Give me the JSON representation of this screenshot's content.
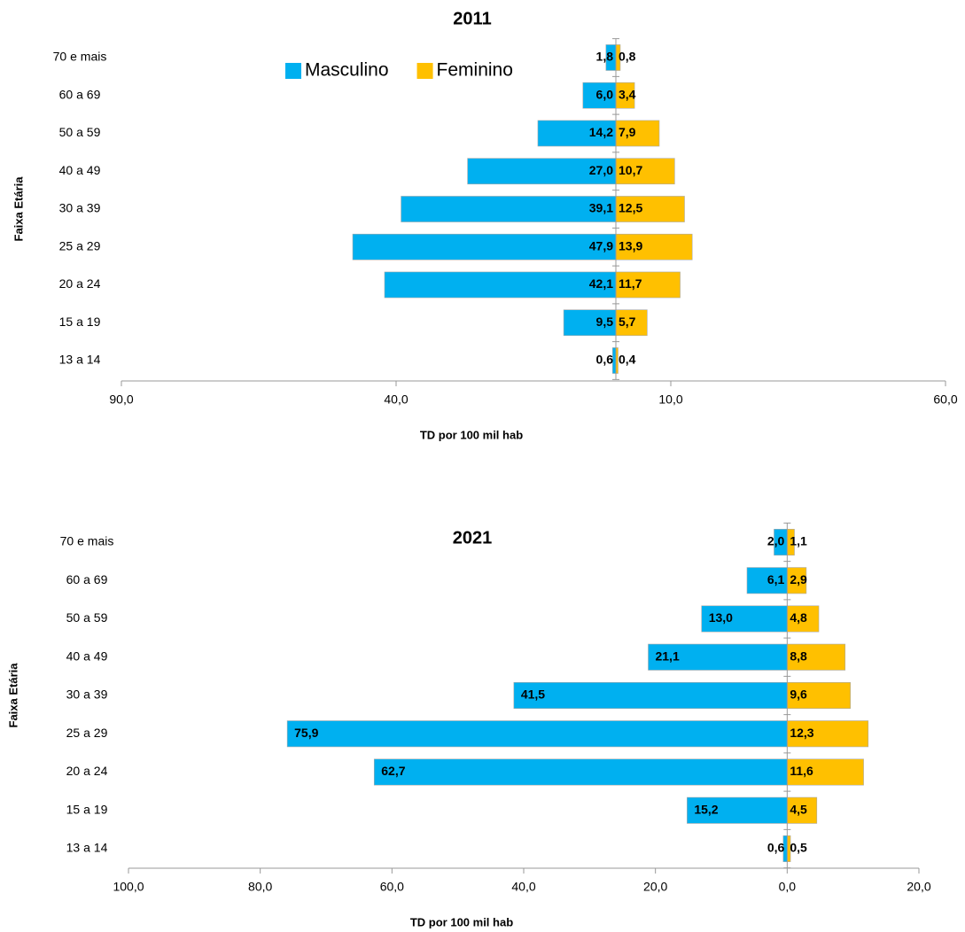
{
  "chart_data": [
    {
      "type": "pyramid",
      "title": "2011",
      "x_label": "TD por 100 mil hab",
      "y_label": "Faixa Etária",
      "categories": [
        "70 e mais",
        "60 a 69",
        "50 a 59",
        "40 a 49",
        "30 a 39",
        "25 a 29",
        "20 a 24",
        "15 a 19",
        "13 a 14"
      ],
      "series": [
        {
          "name": "Masculino",
          "color": "#00b0f0",
          "side": "left",
          "values": [
            1.8,
            6.0,
            14.2,
            27.0,
            39.1,
            47.9,
            42.1,
            9.5,
            0.6
          ],
          "value_labels": [
            "1,8",
            "6,0",
            "14,2",
            "27,0",
            "39,1",
            "47,9",
            "42,1",
            "9,5",
            "0,6"
          ]
        },
        {
          "name": "Feminino",
          "color": "#ffc000",
          "side": "right",
          "values": [
            0.8,
            3.4,
            7.9,
            10.7,
            12.5,
            13.9,
            11.7,
            5.7,
            0.4
          ],
          "value_labels": [
            "0,8",
            "3,4",
            "7,9",
            "10,7",
            "12,5",
            "13,9",
            "11,7",
            "5,7",
            "0,4"
          ]
        }
      ],
      "xlim": [
        -90,
        60
      ],
      "xticks": [
        {
          "value": -90,
          "label": "90,0"
        },
        {
          "value": -40,
          "label": "40,0"
        },
        {
          "value": 10,
          "label": "10,0"
        },
        {
          "value": 60,
          "label": "60,0"
        }
      ],
      "legend": true
    },
    {
      "type": "pyramid",
      "title": "2021",
      "x_label": "TD por 100 mil hab",
      "y_label": "Faixa Etária",
      "categories": [
        "70 e mais",
        "60 a 69",
        "50 a 59",
        "40 a 49",
        "30 a 39",
        "25 a 29",
        "20 a 24",
        "15 a 19",
        "13 a 14"
      ],
      "series": [
        {
          "name": "Masculino",
          "color": "#00b0f0",
          "side": "left",
          "values": [
            2.0,
            6.1,
            13.0,
            21.1,
            41.5,
            75.9,
            62.7,
            15.2,
            0.6
          ],
          "value_labels": [
            "2,0",
            "6,1",
            "13,0",
            "21,1",
            "41,5",
            "75,9",
            "62,7",
            "15,2",
            "0,6"
          ]
        },
        {
          "name": "Feminino",
          "color": "#ffc000",
          "side": "right",
          "values": [
            1.1,
            2.9,
            4.8,
            8.8,
            9.6,
            12.3,
            11.6,
            4.5,
            0.5
          ],
          "value_labels": [
            "1,1",
            "2,9",
            "4,8",
            "8,8",
            "9,6",
            "12,3",
            "11,6",
            "4,5",
            "0,5"
          ]
        }
      ],
      "xlim": [
        -100,
        20
      ],
      "xticks": [
        {
          "value": -100,
          "label": "100,0"
        },
        {
          "value": -80,
          "label": "80,0"
        },
        {
          "value": -60,
          "label": "60,0"
        },
        {
          "value": -40,
          "label": "40,0"
        },
        {
          "value": -20,
          "label": "20,0"
        },
        {
          "value": 0,
          "label": "0,0"
        },
        {
          "value": 20,
          "label": "20,0"
        }
      ],
      "legend": false
    }
  ]
}
